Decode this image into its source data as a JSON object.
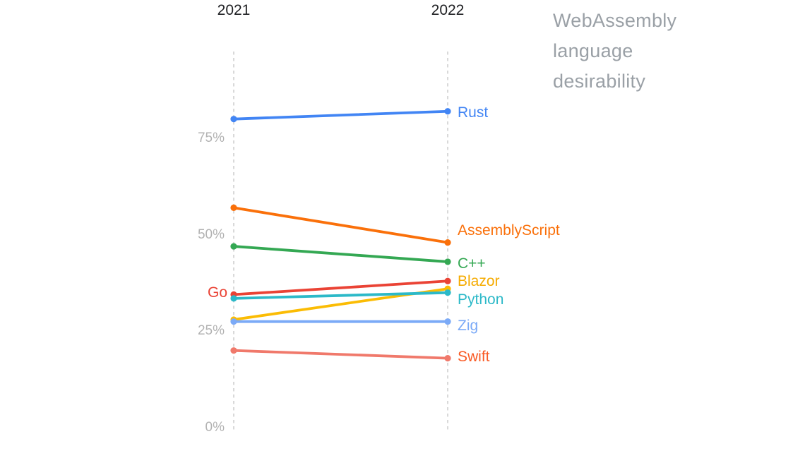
{
  "title": "WebAssembly language desirability",
  "chart_data": {
    "type": "line",
    "subtype": "slope-chart",
    "x_categories": [
      "2021",
      "2022"
    ],
    "xlabel": "",
    "ylabel": "",
    "ylim": [
      0,
      100
    ],
    "y_ticks": [
      {
        "label": "0%",
        "value": 0
      },
      {
        "label": "25%",
        "value": 25
      },
      {
        "label": "50%",
        "value": 50
      },
      {
        "label": "75%",
        "value": 75
      }
    ],
    "grid": "dashed-vertical-at-each-year",
    "legend_position": "inline-labels-next-to-line-ends",
    "series": [
      {
        "name": "Rust",
        "color": "#4285F4",
        "label_color": "#4285F4",
        "values": [
          80,
          82
        ],
        "label_side": "right",
        "label_dy": 2
      },
      {
        "name": "AssemblyScript",
        "color": "#FA700A",
        "label_color": "#FA700A",
        "values": [
          57,
          48
        ],
        "label_side": "right",
        "label_dy": -17
      },
      {
        "name": "C++",
        "color": "#34A853",
        "label_color": "#34A853",
        "values": [
          47,
          43
        ],
        "label_side": "right",
        "label_dy": 3
      },
      {
        "name": "Go",
        "color": "#EA4335",
        "label_color": "#EA4335",
        "values": [
          34.5,
          38
        ],
        "label_side": "left",
        "label_dy": -2
      },
      {
        "name": "Blazor",
        "color": "#FBBC04",
        "label_color": "#F5AB00",
        "values": [
          28,
          36
        ],
        "label_side": "right",
        "label_dy": -10
      },
      {
        "name": "Python",
        "color": "#2CB9C8",
        "label_color": "#2CB9C8",
        "values": [
          33.5,
          35
        ],
        "label_side": "right",
        "label_dy": 10
      },
      {
        "name": "Zig",
        "color": "#7BAAF7",
        "label_color": "#7BAAF7",
        "values": [
          27.5,
          27.5
        ],
        "label_side": "right",
        "label_dy": 6
      },
      {
        "name": "Swift",
        "color": "#F0796B",
        "label_color": "#F95A24",
        "values": [
          20,
          18
        ],
        "label_side": "right",
        "label_dy": -2
      }
    ]
  }
}
